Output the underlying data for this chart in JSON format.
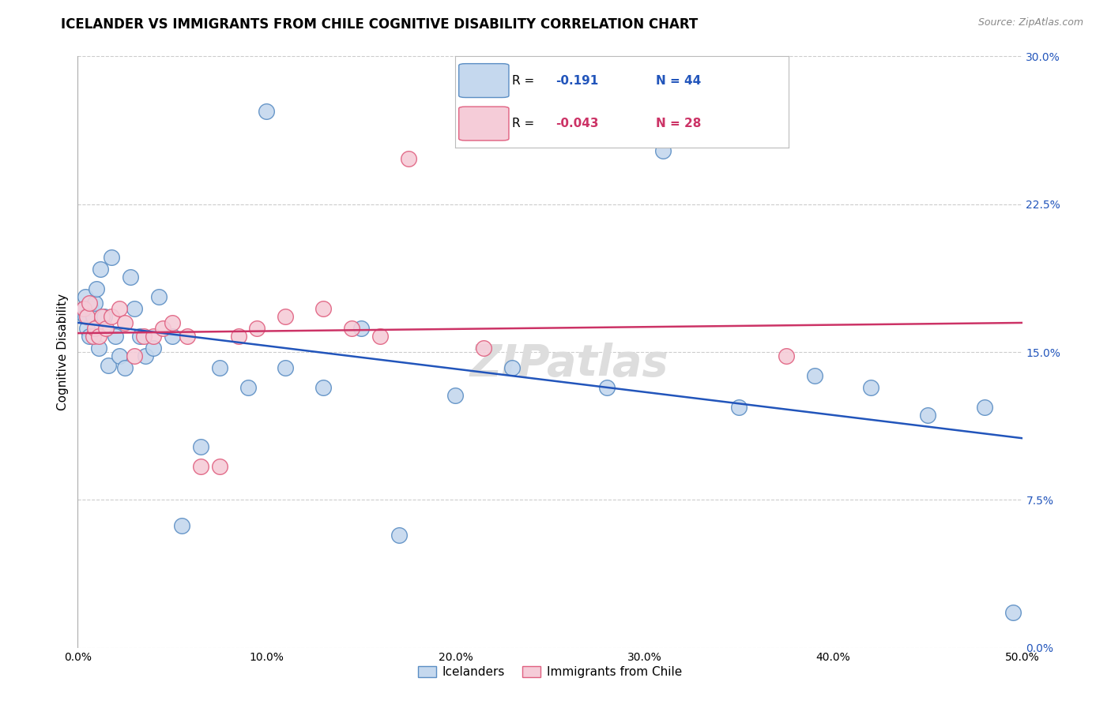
{
  "title": "ICELANDER VS IMMIGRANTS FROM CHILE COGNITIVE DISABILITY CORRELATION CHART",
  "source": "Source: ZipAtlas.com",
  "ylabel_label": "Cognitive Disability",
  "xlim": [
    0.0,
    0.5
  ],
  "ylim": [
    0.0,
    0.3
  ],
  "icelanders_x": [
    0.002,
    0.003,
    0.004,
    0.004,
    0.005,
    0.006,
    0.007,
    0.008,
    0.009,
    0.01,
    0.011,
    0.012,
    0.014,
    0.016,
    0.018,
    0.02,
    0.022,
    0.025,
    0.028,
    0.03,
    0.033,
    0.036,
    0.04,
    0.043,
    0.05,
    0.055,
    0.065,
    0.075,
    0.09,
    0.1,
    0.11,
    0.13,
    0.15,
    0.17,
    0.2,
    0.23,
    0.28,
    0.31,
    0.35,
    0.39,
    0.42,
    0.45,
    0.48,
    0.495
  ],
  "icelanders_y": [
    0.17,
    0.172,
    0.168,
    0.178,
    0.162,
    0.158,
    0.172,
    0.168,
    0.175,
    0.182,
    0.152,
    0.192,
    0.168,
    0.143,
    0.198,
    0.158,
    0.148,
    0.142,
    0.188,
    0.172,
    0.158,
    0.148,
    0.152,
    0.178,
    0.158,
    0.062,
    0.102,
    0.142,
    0.132,
    0.272,
    0.142,
    0.132,
    0.162,
    0.057,
    0.128,
    0.142,
    0.132,
    0.252,
    0.122,
    0.138,
    0.132,
    0.118,
    0.122,
    0.018
  ],
  "immigrants_x": [
    0.003,
    0.005,
    0.006,
    0.008,
    0.009,
    0.011,
    0.013,
    0.015,
    0.018,
    0.022,
    0.025,
    0.03,
    0.035,
    0.04,
    0.045,
    0.05,
    0.058,
    0.065,
    0.075,
    0.085,
    0.095,
    0.11,
    0.13,
    0.145,
    0.16,
    0.175,
    0.215,
    0.375
  ],
  "immigrants_y": [
    0.172,
    0.168,
    0.175,
    0.158,
    0.162,
    0.158,
    0.168,
    0.162,
    0.168,
    0.172,
    0.165,
    0.148,
    0.158,
    0.158,
    0.162,
    0.165,
    0.158,
    0.092,
    0.092,
    0.158,
    0.162,
    0.168,
    0.172,
    0.162,
    0.158,
    0.248,
    0.152,
    0.148
  ],
  "icelanders_color": "#c5d8ee",
  "immigrants_color": "#f5ccd8",
  "icelanders_edge_color": "#5b8ec4",
  "immigrants_edge_color": "#e06080",
  "trend_icelanders_color": "#2255bb",
  "trend_immigrants_color": "#cc3366",
  "R_icelanders": "-0.191",
  "N_icelanders": "44",
  "R_immigrants": "-0.043",
  "N_immigrants": "28",
  "legend_label_icelanders": "Icelanders",
  "legend_label_immigrants": "Immigrants from Chile",
  "background_color": "#ffffff",
  "grid_color": "#cccccc",
  "watermark": "ZIPatlas",
  "title_fontsize": 12,
  "axis_label_fontsize": 11,
  "tick_fontsize": 10,
  "source_fontsize": 9,
  "marker_size": 200
}
